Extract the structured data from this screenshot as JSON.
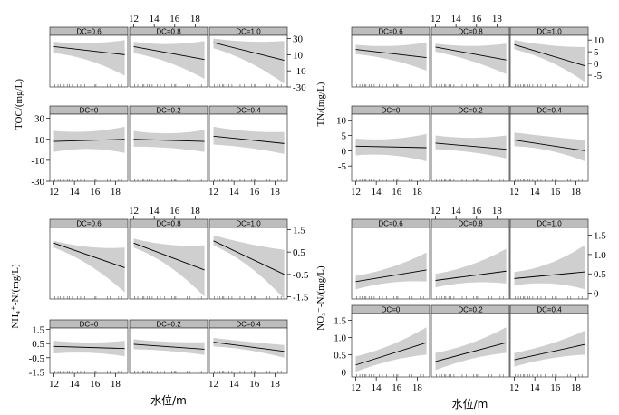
{
  "chart_data": [
    {
      "type": "line",
      "id": "toc",
      "ylabel": "TOC/(mg/L)",
      "xlabel": "",
      "xlim": [
        11.6,
        19.2
      ],
      "ylim": [
        -30,
        34
      ],
      "xticks": [
        "12",
        "14",
        "16",
        "18"
      ],
      "yticks": [
        "30",
        "10",
        "-10",
        "-30"
      ],
      "panels": [
        {
          "label": "DC=0.6",
          "row": 0,
          "col": 0,
          "fit": [
            [
              12,
              20
            ],
            [
              18.9,
              10
            ]
          ],
          "band_low": [
            [
              12,
              12
            ],
            [
              15.5,
              7
            ],
            [
              18.9,
              -16
            ]
          ],
          "band_high": [
            [
              12,
              26
            ],
            [
              15.5,
              22
            ],
            [
              18.9,
              28
            ]
          ]
        },
        {
          "label": "DC=0.8",
          "row": 0,
          "col": 1,
          "fit": [
            [
              12,
              20
            ],
            [
              18.9,
              4
            ]
          ],
          "band_low": [
            [
              12,
              12
            ],
            [
              15.5,
              4
            ],
            [
              18.9,
              -20
            ]
          ],
          "band_high": [
            [
              12,
              26
            ],
            [
              15.5,
              20
            ],
            [
              18.9,
              27
            ]
          ]
        },
        {
          "label": "DC=1.0",
          "row": 0,
          "col": 2,
          "fit": [
            [
              12,
              25
            ],
            [
              18.9,
              3
            ]
          ],
          "band_low": [
            [
              12,
              18
            ],
            [
              15.5,
              5
            ],
            [
              18.9,
              -26
            ]
          ],
          "band_high": [
            [
              12,
              30
            ],
            [
              15.5,
              24
            ],
            [
              18.9,
              27
            ]
          ]
        },
        {
          "label": "DC=0",
          "row": 1,
          "col": 0,
          "fit": [
            [
              12,
              8
            ],
            [
              18.9,
              10
            ]
          ],
          "band_low": [
            [
              12,
              -2
            ],
            [
              15.5,
              4
            ],
            [
              18.9,
              -3
            ]
          ],
          "band_high": [
            [
              12,
              18
            ],
            [
              15.5,
              15
            ],
            [
              18.9,
              22
            ]
          ]
        },
        {
          "label": "DC=0.2",
          "row": 1,
          "col": 1,
          "fit": [
            [
              12,
              10
            ],
            [
              18.9,
              8
            ]
          ],
          "band_low": [
            [
              12,
              3
            ],
            [
              15.5,
              3
            ],
            [
              18.9,
              -2
            ]
          ],
          "band_high": [
            [
              12,
              18
            ],
            [
              15.5,
              13
            ],
            [
              18.9,
              19
            ]
          ]
        },
        {
          "label": "DC=0.4",
          "row": 1,
          "col": 2,
          "fit": [
            [
              12,
              13
            ],
            [
              18.9,
              6
            ]
          ],
          "band_low": [
            [
              12,
              5
            ],
            [
              15.5,
              3
            ],
            [
              18.9,
              -4
            ]
          ],
          "band_high": [
            [
              12,
              22
            ],
            [
              15.5,
              16
            ],
            [
              18.9,
              17
            ]
          ]
        }
      ]
    },
    {
      "type": "line",
      "id": "tn",
      "ylabel": "TN/(mg/L)",
      "xlabel": "",
      "xlim": [
        11.6,
        19.2
      ],
      "ylim": [
        -10,
        12
      ],
      "xticks": [
        "12",
        "14",
        "16",
        "18"
      ],
      "yticks": [
        "10",
        "5",
        "0",
        "-5"
      ],
      "y2ticks": [
        "10",
        "5",
        "0",
        "-5"
      ],
      "panels": [
        {
          "label": "DC=0.6",
          "row": 0,
          "col": 0,
          "fit": [
            [
              12,
              6
            ],
            [
              18.9,
              2.5
            ]
          ],
          "band_low": [
            [
              12,
              4
            ],
            [
              15.5,
              2.5
            ],
            [
              18.9,
              -3
            ]
          ],
          "band_high": [
            [
              12,
              8
            ],
            [
              15.5,
              6.5
            ],
            [
              18.9,
              9
            ]
          ]
        },
        {
          "label": "DC=0.8",
          "row": 0,
          "col": 1,
          "fit": [
            [
              12,
              7
            ],
            [
              18.9,
              1.5
            ]
          ],
          "band_low": [
            [
              12,
              5
            ],
            [
              15.5,
              2
            ],
            [
              18.9,
              -4.5
            ]
          ],
          "band_high": [
            [
              12,
              8.5
            ],
            [
              15.5,
              6.5
            ],
            [
              18.9,
              8.5
            ]
          ]
        },
        {
          "label": "DC=1.0",
          "row": 0,
          "col": 2,
          "fit": [
            [
              12,
              8
            ],
            [
              18.9,
              -1
            ]
          ],
          "band_low": [
            [
              12,
              6
            ],
            [
              15.5,
              2.5
            ],
            [
              18.9,
              -8
            ]
          ],
          "band_high": [
            [
              12,
              10
            ],
            [
              15.5,
              7
            ],
            [
              18.9,
              7
            ]
          ]
        },
        {
          "label": "DC=0",
          "row": 1,
          "col": 0,
          "fit": [
            [
              12,
              1.5
            ],
            [
              18.9,
              1
            ]
          ],
          "band_low": [
            [
              12,
              -1.5
            ],
            [
              15.5,
              -0.5
            ],
            [
              18.9,
              -3.5
            ]
          ],
          "band_high": [
            [
              12,
              4
            ],
            [
              15.5,
              3
            ],
            [
              18.9,
              5.5
            ]
          ]
        },
        {
          "label": "DC=0.2",
          "row": 1,
          "col": 1,
          "fit": [
            [
              12,
              2.5
            ],
            [
              18.9,
              0.5
            ]
          ],
          "band_low": [
            [
              12,
              0.5
            ],
            [
              15.5,
              0
            ],
            [
              18.9,
              -2.5
            ]
          ],
          "band_high": [
            [
              12,
              5
            ],
            [
              15.5,
              3.5
            ],
            [
              18.9,
              5
            ]
          ]
        },
        {
          "label": "DC=0.4",
          "row": 1,
          "col": 2,
          "fit": [
            [
              12,
              3.5
            ],
            [
              18.9,
              0
            ]
          ],
          "band_low": [
            [
              12,
              1.5
            ],
            [
              15.5,
              1
            ],
            [
              18.9,
              -3.5
            ]
          ],
          "band_high": [
            [
              12,
              6
            ],
            [
              15.5,
              4.5
            ],
            [
              18.9,
              3.5
            ]
          ]
        }
      ]
    },
    {
      "type": "line",
      "id": "nh4",
      "ylabel": "NH₄⁺-N/(mg/L)",
      "xlabel": "水位/m",
      "xlim": [
        11.6,
        19.2
      ],
      "ylim": [
        -1.6,
        1.6
      ],
      "xticks": [
        "12",
        "14",
        "16",
        "18"
      ],
      "yticks": [
        "1.5",
        "0.5",
        "-0.5",
        "-1.5"
      ],
      "panels": [
        {
          "label": "DC=0.6",
          "row": 0,
          "col": 0,
          "fit": [
            [
              12,
              0.9
            ],
            [
              18.9,
              -0.2
            ]
          ],
          "band_low": [
            [
              12,
              0.7
            ],
            [
              15.5,
              0.1
            ],
            [
              18.9,
              -1.3
            ]
          ],
          "band_high": [
            [
              12,
              1.0
            ],
            [
              15.5,
              0.6
            ],
            [
              18.9,
              0.7
            ]
          ]
        },
        {
          "label": "DC=0.8",
          "row": 0,
          "col": 1,
          "fit": [
            [
              12,
              0.9
            ],
            [
              18.9,
              -0.3
            ]
          ],
          "band_low": [
            [
              12,
              0.7
            ],
            [
              15.5,
              0.1
            ],
            [
              18.9,
              -1.5
            ]
          ],
          "band_high": [
            [
              12,
              1.1
            ],
            [
              15.5,
              0.7
            ],
            [
              18.9,
              0.8
            ]
          ]
        },
        {
          "label": "DC=1.0",
          "row": 0,
          "col": 2,
          "fit": [
            [
              12,
              1.0
            ],
            [
              18.9,
              -0.5
            ]
          ],
          "band_low": [
            [
              12,
              0.8
            ],
            [
              15.5,
              0.1
            ],
            [
              18.9,
              -1.6
            ]
          ],
          "band_high": [
            [
              12,
              1.25
            ],
            [
              15.5,
              0.8
            ],
            [
              18.9,
              0.6
            ]
          ]
        },
        {
          "label": "DC=0",
          "row": 1,
          "col": 0,
          "fit": [
            [
              12,
              0.3
            ],
            [
              18.9,
              0.15
            ]
          ],
          "band_low": [
            [
              12,
              -0.2
            ],
            [
              15.5,
              0.0
            ],
            [
              18.9,
              -0.4
            ]
          ],
          "band_high": [
            [
              12,
              0.7
            ],
            [
              15.5,
              0.45
            ],
            [
              18.9,
              0.7
            ]
          ]
        },
        {
          "label": "DC=0.2",
          "row": 1,
          "col": 1,
          "fit": [
            [
              12,
              0.45
            ],
            [
              18.9,
              0.1
            ]
          ],
          "band_low": [
            [
              12,
              0.1
            ],
            [
              15.5,
              0.05
            ],
            [
              18.9,
              -0.3
            ]
          ],
          "band_high": [
            [
              12,
              0.8
            ],
            [
              15.5,
              0.55
            ],
            [
              18.9,
              0.6
            ]
          ]
        },
        {
          "label": "DC=0.4",
          "row": 1,
          "col": 2,
          "fit": [
            [
              12,
              0.6
            ],
            [
              18.9,
              -0.05
            ]
          ],
          "band_low": [
            [
              12,
              0.3
            ],
            [
              15.5,
              0.15
            ],
            [
              18.9,
              -0.5
            ]
          ],
          "band_high": [
            [
              12,
              0.9
            ],
            [
              15.5,
              0.6
            ],
            [
              18.9,
              0.4
            ]
          ]
        }
      ]
    },
    {
      "type": "line",
      "id": "no3",
      "ylabel": "NO₃⁻-N/(mg/L)",
      "xlabel": "水位/m",
      "xlim": [
        11.6,
        19.2
      ],
      "ylim": [
        -0.15,
        1.7
      ],
      "xticks": [
        "12",
        "14",
        "16",
        "18"
      ],
      "yticks": [
        "1.5",
        "1.0",
        "0.5",
        "0"
      ],
      "y2ticks": [
        "1.5",
        "1.0",
        "0.5",
        "0"
      ],
      "panels": [
        {
          "label": "DC=0.6",
          "row": 0,
          "col": 0,
          "fit": [
            [
              12,
              0.3
            ],
            [
              18.9,
              0.6
            ]
          ],
          "band_low": [
            [
              12,
              0.1
            ],
            [
              15.5,
              0.35
            ],
            [
              18.9,
              0.3
            ]
          ],
          "band_high": [
            [
              12,
              0.45
            ],
            [
              15.5,
              0.6
            ],
            [
              18.9,
              1.05
            ]
          ]
        },
        {
          "label": "DC=0.8",
          "row": 0,
          "col": 1,
          "fit": [
            [
              12,
              0.33
            ],
            [
              18.9,
              0.57
            ]
          ],
          "band_low": [
            [
              12,
              0.15
            ],
            [
              15.5,
              0.35
            ],
            [
              18.9,
              0.25
            ]
          ],
          "band_high": [
            [
              12,
              0.5
            ],
            [
              15.5,
              0.65
            ],
            [
              18.9,
              1.15
            ]
          ]
        },
        {
          "label": "DC=1.0",
          "row": 0,
          "col": 2,
          "fit": [
            [
              12,
              0.38
            ],
            [
              18.9,
              0.55
            ]
          ],
          "band_low": [
            [
              12,
              0.2
            ],
            [
              15.5,
              0.35
            ],
            [
              18.9,
              0.1
            ]
          ],
          "band_high": [
            [
              12,
              0.55
            ],
            [
              15.5,
              0.65
            ],
            [
              18.9,
              1.25
            ]
          ]
        },
        {
          "label": "DC=0",
          "row": 1,
          "col": 0,
          "fit": [
            [
              12,
              0.2
            ],
            [
              18.9,
              0.85
            ]
          ],
          "band_low": [
            [
              12,
              0.0
            ],
            [
              15.5,
              0.4
            ],
            [
              18.9,
              0.5
            ]
          ],
          "band_high": [
            [
              12,
              0.45
            ],
            [
              15.5,
              0.7
            ],
            [
              18.9,
              1.3
            ]
          ]
        },
        {
          "label": "DC=0.2",
          "row": 1,
          "col": 1,
          "fit": [
            [
              12,
              0.3
            ],
            [
              18.9,
              0.85
            ]
          ],
          "band_low": [
            [
              12,
              0.05
            ],
            [
              15.5,
              0.45
            ],
            [
              18.9,
              0.55
            ]
          ],
          "band_high": [
            [
              12,
              0.55
            ],
            [
              15.5,
              0.75
            ],
            [
              18.9,
              1.3
            ]
          ]
        },
        {
          "label": "DC=0.4",
          "row": 1,
          "col": 2,
          "fit": [
            [
              12,
              0.35
            ],
            [
              18.9,
              0.8
            ]
          ],
          "band_low": [
            [
              12,
              0.15
            ],
            [
              15.5,
              0.45
            ],
            [
              18.9,
              0.5
            ]
          ],
          "band_high": [
            [
              12,
              0.55
            ],
            [
              15.5,
              0.75
            ],
            [
              18.9,
              1.2
            ]
          ]
        }
      ]
    }
  ]
}
